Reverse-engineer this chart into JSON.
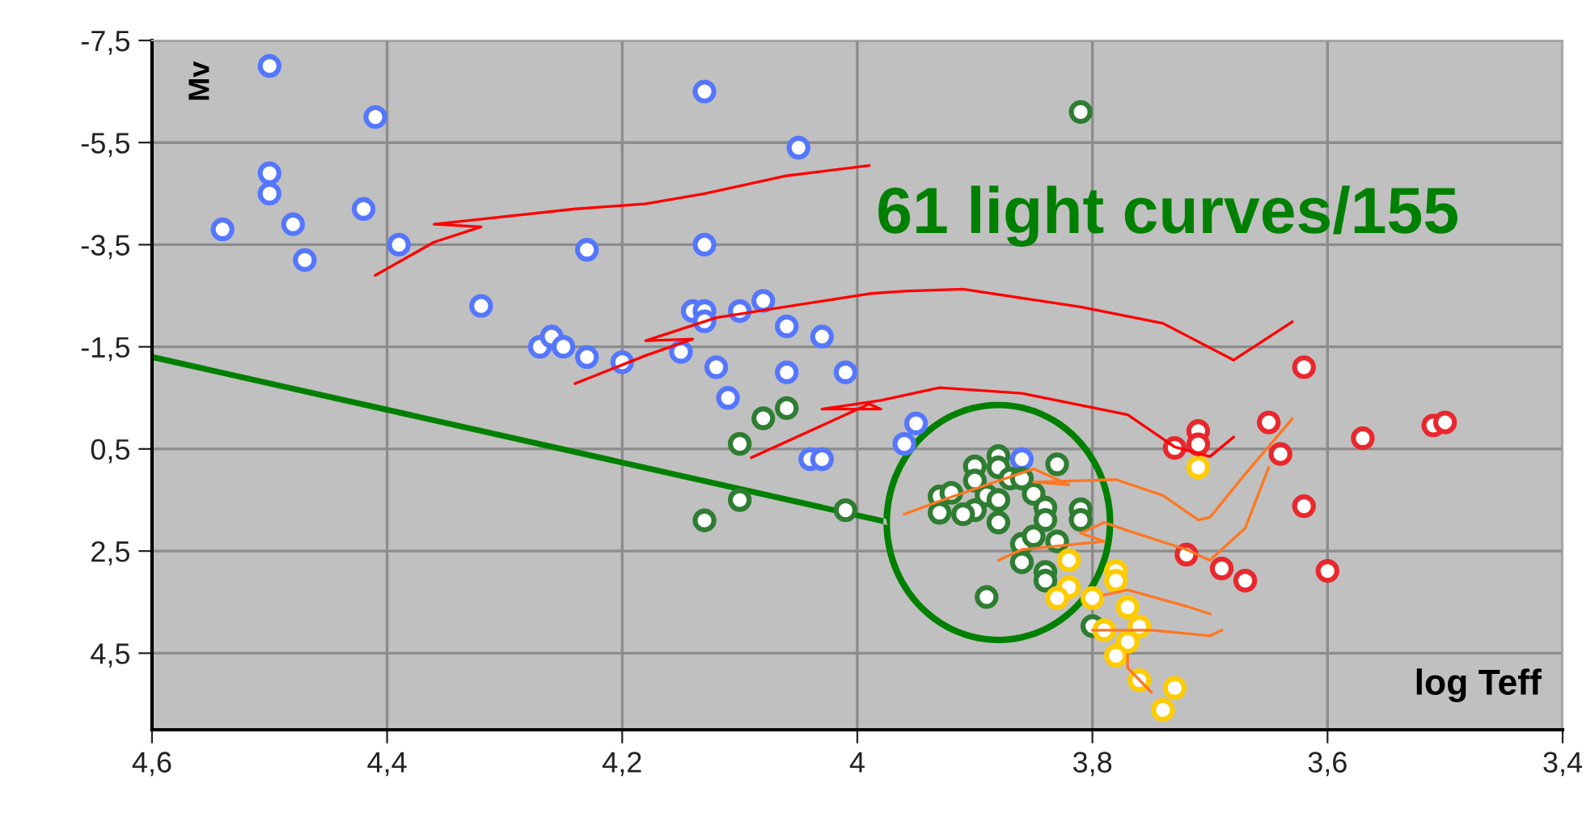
{
  "chart_data": {
    "type": "scatter",
    "xlabel": "log Teff",
    "ylabel": "Mv",
    "annotations": [
      "61 light curves/155"
    ],
    "xlim": [
      4.6,
      3.4
    ],
    "ylim": [
      6.0,
      -7.5
    ],
    "xticks": [
      {
        "value": 4.6,
        "label": "4,6"
      },
      {
        "value": 4.4,
        "label": "4,4"
      },
      {
        "value": 4.2,
        "label": "4,2"
      },
      4,
      {
        "value": 3.8,
        "label": "3,8"
      },
      {
        "value": 3.6,
        "label": "3,6"
      },
      {
        "value": 3.4,
        "label": "3,4"
      }
    ],
    "yticks": [
      {
        "value": -7.5,
        "label": "-7,5"
      },
      {
        "value": -5.5,
        "label": "-5,5"
      },
      {
        "value": -3.5,
        "label": "-3,5"
      },
      {
        "value": -1.5,
        "label": "-1,5"
      },
      {
        "value": 0.5,
        "label": "0,5"
      },
      {
        "value": 2.5,
        "label": "2,5"
      },
      {
        "value": 4.5,
        "label": "4,5"
      }
    ],
    "grid": true,
    "series": [
      {
        "type": "line",
        "color": "#ff0000",
        "x": [
          4.41,
          4.36,
          4.32,
          4.36,
          4.32,
          4.24,
          4.18,
          4.13,
          4.06,
          3.99
        ],
        "values": [
          -2.9,
          -3.55,
          -3.85,
          -3.9,
          -4.0,
          -4.2,
          -4.3,
          -4.5,
          -4.85,
          -5.05
        ]
      },
      {
        "type": "line",
        "color": "#ff0000",
        "x": [
          4.24,
          4.18,
          4.14,
          4.18,
          4.12,
          3.99,
          3.96,
          3.91,
          3.81,
          3.74,
          3.68,
          3.63
        ],
        "values": [
          -0.78,
          -1.33,
          -1.65,
          -1.62,
          -2.07,
          -2.54,
          -2.59,
          -2.63,
          -2.28,
          -1.96,
          -1.24,
          -1.99
        ]
      },
      {
        "type": "line",
        "color": "#ff0000",
        "x": [
          4.09,
          3.99,
          3.98,
          4.03,
          3.98,
          3.93,
          3.86,
          3.77,
          3.73,
          3.7,
          3.68
        ],
        "values": [
          0.67,
          -0.38,
          -0.28,
          -0.28,
          -0.45,
          -0.7,
          -0.59,
          -0.17,
          0.46,
          0.65,
          0.27
        ]
      },
      {
        "type": "line",
        "color": "#ff7722",
        "x": [
          3.96,
          3.93,
          3.85,
          3.82,
          3.85,
          3.78,
          3.74,
          3.71,
          3.7,
          3.67,
          3.63
        ],
        "values": [
          1.78,
          1.52,
          0.89,
          1.2,
          1.15,
          1.1,
          1.41,
          1.89,
          1.84,
          0.99,
          -0.09
        ]
      },
      {
        "type": "line",
        "color": "#ff7722",
        "x": [
          3.88,
          3.86,
          3.79,
          3.81,
          3.79,
          3.77,
          3.72,
          3.7,
          3.67,
          3.65
        ],
        "values": [
          2.68,
          2.47,
          2.31,
          2.15,
          1.94,
          2.1,
          2.47,
          2.68,
          2.05,
          0.86
        ]
      },
      {
        "type": "line",
        "color": "#ff7722",
        "x": [
          3.79,
          3.77,
          3.72,
          3.7
        ],
        "values": [
          3.36,
          3.26,
          3.58,
          3.73
        ]
      },
      {
        "type": "line",
        "color": "#ff7722",
        "x": [
          3.8,
          3.75,
          3.7,
          3.69
        ],
        "values": [
          4.05,
          4.05,
          4.16,
          4.05
        ]
      },
      {
        "type": "line",
        "color": "#ff7722",
        "x": [
          3.77,
          3.77,
          3.75
        ],
        "values": [
          4.53,
          4.79,
          5.26
        ]
      },
      {
        "marker": "circle",
        "color": "#5577ff",
        "x": [
          4.5,
          4.41,
          4.5,
          4.5,
          4.42,
          4.54,
          4.48,
          4.47,
          4.39,
          4.32,
          4.23,
          4.13,
          4.13,
          4.05,
          4.27,
          4.26,
          4.25,
          4.23,
          4.2,
          4.14,
          4.13,
          4.13,
          4.1,
          4.08,
          4.06,
          4.03,
          4.15,
          4.12,
          4.06,
          4.01,
          4.11,
          4.04,
          4.03,
          3.95,
          3.96,
          3.86
        ],
        "values": [
          -7.0,
          -6.0,
          -4.9,
          -4.5,
          -4.2,
          -3.8,
          -3.9,
          -3.2,
          -3.5,
          -2.3,
          -3.4,
          -6.5,
          -3.5,
          -5.4,
          -1.5,
          -1.7,
          -1.5,
          -1.3,
          -1.2,
          -2.2,
          -2.2,
          -2.0,
          -2.2,
          -2.4,
          -1.9,
          -1.7,
          -1.4,
          -1.1,
          -1.0,
          -1.0,
          -0.5,
          0.7,
          0.7,
          0.0,
          0.4,
          0.7
        ]
      },
      {
        "marker": "circle",
        "color": "#2e7d32",
        "x": [
          3.81,
          4.08,
          4.06,
          4.1,
          4.1,
          4.13,
          4.01,
          3.9,
          3.88,
          3.88,
          3.83,
          3.9,
          3.87,
          3.86,
          3.93,
          3.92,
          3.89,
          3.88,
          3.85,
          3.93,
          3.9,
          3.91,
          3.88,
          3.84,
          3.84,
          3.81,
          3.81,
          3.86,
          3.85,
          3.83,
          3.86,
          3.84,
          3.84,
          3.89,
          3.8
        ],
        "values": [
          -6.1,
          -0.1,
          -0.3,
          0.4,
          1.5,
          1.9,
          1.7,
          0.84,
          0.64,
          0.86,
          0.8,
          1.12,
          1.08,
          1.08,
          1.43,
          1.36,
          1.41,
          1.5,
          1.38,
          1.75,
          1.7,
          1.78,
          1.94,
          1.65,
          1.89,
          1.68,
          1.89,
          2.36,
          2.21,
          2.31,
          2.72,
          2.91,
          3.08,
          3.4,
          3.97
        ]
      },
      {
        "marker": "circle",
        "color": "#ffcc00",
        "x": [
          3.71,
          3.82,
          3.78,
          3.78,
          3.82,
          3.83,
          3.8,
          3.79,
          3.77,
          3.76,
          3.77,
          3.78,
          3.76,
          3.73,
          3.74
        ],
        "values": [
          0.86,
          2.68,
          2.89,
          3.08,
          3.21,
          3.42,
          3.42,
          4.05,
          3.6,
          3.98,
          4.28,
          4.55,
          5.03,
          5.18,
          5.61
        ]
      },
      {
        "marker": "circle",
        "color": "#e8282d",
        "x": [
          3.62,
          3.73,
          3.71,
          3.71,
          3.65,
          3.64,
          3.57,
          3.51,
          3.5,
          3.62,
          3.72,
          3.69,
          3.67,
          3.6
        ],
        "values": [
          -1.1,
          0.48,
          0.15,
          0.41,
          -0.02,
          0.6,
          0.29,
          0.04,
          -0.02,
          1.62,
          2.57,
          2.84,
          3.08,
          2.89
        ]
      }
    ]
  }
}
